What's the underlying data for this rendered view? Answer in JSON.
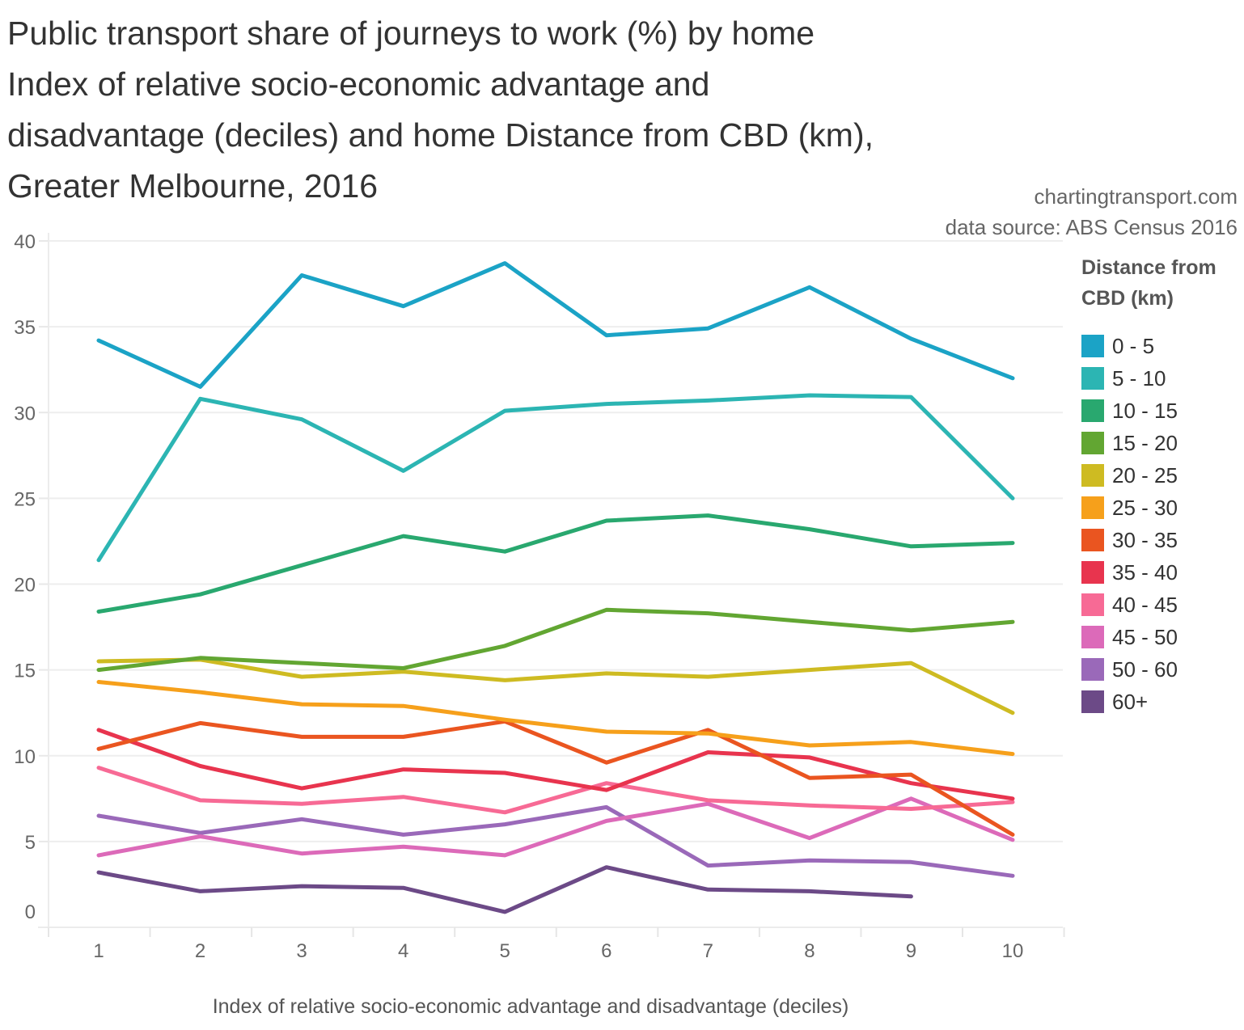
{
  "header": {
    "title_lines": [
      "Public transport share of journeys to work (%) by home",
      "Index of relative socio-economic advantage and",
      "disadvantage (deciles) and home Distance from CBD (km),",
      "Greater Melbourne, 2016"
    ],
    "site": "chartingtransport.com",
    "source": "data source: ABS Census 2016"
  },
  "chart_data": {
    "type": "line",
    "title": "Public transport share of journeys to work (%) by home Index of relative socio-economic advantage and disadvantage (deciles) and home Distance from CBD (km), Greater Melbourne, 2016",
    "xlabel": "Index of relative socio-economic advantage and disadvantage (deciles)",
    "ylabel": "",
    "x": [
      1,
      2,
      3,
      4,
      5,
      6,
      7,
      8,
      9,
      10
    ],
    "x_tick_labels": [
      "1",
      "2",
      "3",
      "4",
      "5",
      "6",
      "7",
      "8",
      "9",
      "10"
    ],
    "y_ticks": [
      0,
      5,
      10,
      15,
      20,
      25,
      30,
      35,
      40
    ],
    "y_tick_labels": [
      "0",
      "5",
      "10",
      "15",
      "20",
      "25",
      "30",
      "35",
      "40"
    ],
    "ylim": [
      0,
      40
    ],
    "grid": true,
    "legend": {
      "title": "Distance from CBD (km)",
      "placement": "right"
    },
    "series": [
      {
        "name": "0 - 5",
        "color": "#1ba3c6",
        "values": [
          34.2,
          31.5,
          38.0,
          36.2,
          38.7,
          34.5,
          34.9,
          37.3,
          34.3,
          32.0
        ]
      },
      {
        "name": "5 - 10",
        "color": "#2cb5b3",
        "values": [
          21.4,
          30.8,
          29.6,
          26.6,
          30.1,
          30.5,
          30.7,
          31.0,
          30.9,
          25.0
        ]
      },
      {
        "name": "10 - 15",
        "color": "#29a86f",
        "values": [
          18.4,
          19.4,
          21.1,
          22.8,
          21.9,
          23.7,
          24.0,
          23.2,
          22.2,
          22.4
        ]
      },
      {
        "name": "15 - 20",
        "color": "#62a632",
        "values": [
          15.0,
          15.7,
          15.4,
          15.1,
          16.4,
          18.5,
          18.3,
          17.8,
          17.3,
          17.8
        ]
      },
      {
        "name": "20 - 25",
        "color": "#cebb22",
        "values": [
          15.5,
          15.6,
          14.6,
          14.9,
          14.4,
          14.8,
          14.6,
          15.0,
          15.4,
          12.5
        ]
      },
      {
        "name": "25 - 30",
        "color": "#f6a01b",
        "values": [
          14.3,
          13.7,
          13.0,
          12.9,
          12.1,
          11.4,
          11.3,
          10.6,
          10.8,
          10.1
        ]
      },
      {
        "name": "30 - 35",
        "color": "#ea5520",
        "values": [
          10.4,
          11.9,
          11.1,
          11.1,
          12.0,
          9.6,
          11.5,
          8.7,
          8.9,
          5.4
        ]
      },
      {
        "name": "35 - 40",
        "color": "#e8344e",
        "values": [
          11.5,
          9.4,
          8.1,
          9.2,
          9.0,
          8.0,
          10.2,
          9.9,
          8.4,
          7.5
        ]
      },
      {
        "name": "40 - 45",
        "color": "#f76a95",
        "values": [
          9.3,
          7.4,
          7.2,
          7.6,
          6.7,
          8.4,
          7.4,
          7.1,
          6.9,
          7.3
        ]
      },
      {
        "name": "45 - 50",
        "color": "#dc6ab9",
        "values": [
          4.2,
          5.3,
          4.3,
          4.7,
          4.2,
          6.2,
          7.2,
          5.2,
          7.5,
          5.1
        ]
      },
      {
        "name": "50 - 60",
        "color": "#9a69b9",
        "values": [
          6.5,
          5.5,
          6.3,
          5.4,
          6.0,
          7.0,
          3.6,
          3.9,
          3.8,
          3.0
        ]
      },
      {
        "name": "60+",
        "color": "#6c4a87",
        "values": [
          3.2,
          2.1,
          2.4,
          2.3,
          0.9,
          3.5,
          2.2,
          2.1,
          1.8,
          null
        ]
      }
    ]
  }
}
